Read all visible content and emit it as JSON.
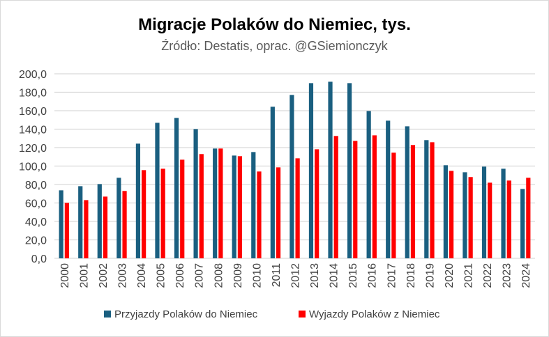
{
  "chart_data": {
    "type": "bar",
    "title": "Migracje Polaków do Niemiec, tys.",
    "subtitle": "Źródło: Destatis, oprac. @GSiemionczyk",
    "categories": [
      "2000",
      "2001",
      "2002",
      "2003",
      "2004",
      "2005",
      "2006",
      "2007",
      "2008",
      "2009",
      "2010",
      "2011",
      "2012",
      "2013",
      "2014",
      "2015",
      "2016",
      "2017",
      "2018",
      "2019",
      "2020",
      "2021",
      "2022",
      "2023",
      "2024"
    ],
    "series": [
      {
        "name": "Przyjazdy Polaków do Niemiec",
        "color": "#1a5f80",
        "values": [
          73.7,
          78.2,
          80.5,
          87.3,
          124.3,
          146.9,
          152.2,
          140.1,
          119.0,
          111.4,
          115.2,
          164.3,
          177.1,
          189.9,
          191.4,
          189.9,
          159.7,
          149.2,
          143.1,
          128.1,
          100.9,
          93.3,
          99.4,
          97.1,
          75.2
        ]
      },
      {
        "name": "Wyjazdy Polaków z Niemiec",
        "color": "#ff0000",
        "values": [
          60.1,
          63.1,
          66.9,
          73.0,
          95.6,
          97.1,
          106.9,
          113.0,
          119.0,
          110.7,
          94.1,
          98.6,
          108.4,
          118.2,
          132.6,
          127.3,
          133.3,
          114.5,
          122.8,
          125.8,
          94.8,
          88.1,
          82.0,
          84.3,
          87.3
        ]
      }
    ],
    "ylim": [
      0,
      200
    ],
    "yticks": [
      "0,0",
      "20,0",
      "40,0",
      "60,0",
      "80,0",
      "100,0",
      "120,0",
      "140,0",
      "160,0",
      "180,0",
      "200,0"
    ],
    "grid": true,
    "legend": "bottom"
  }
}
